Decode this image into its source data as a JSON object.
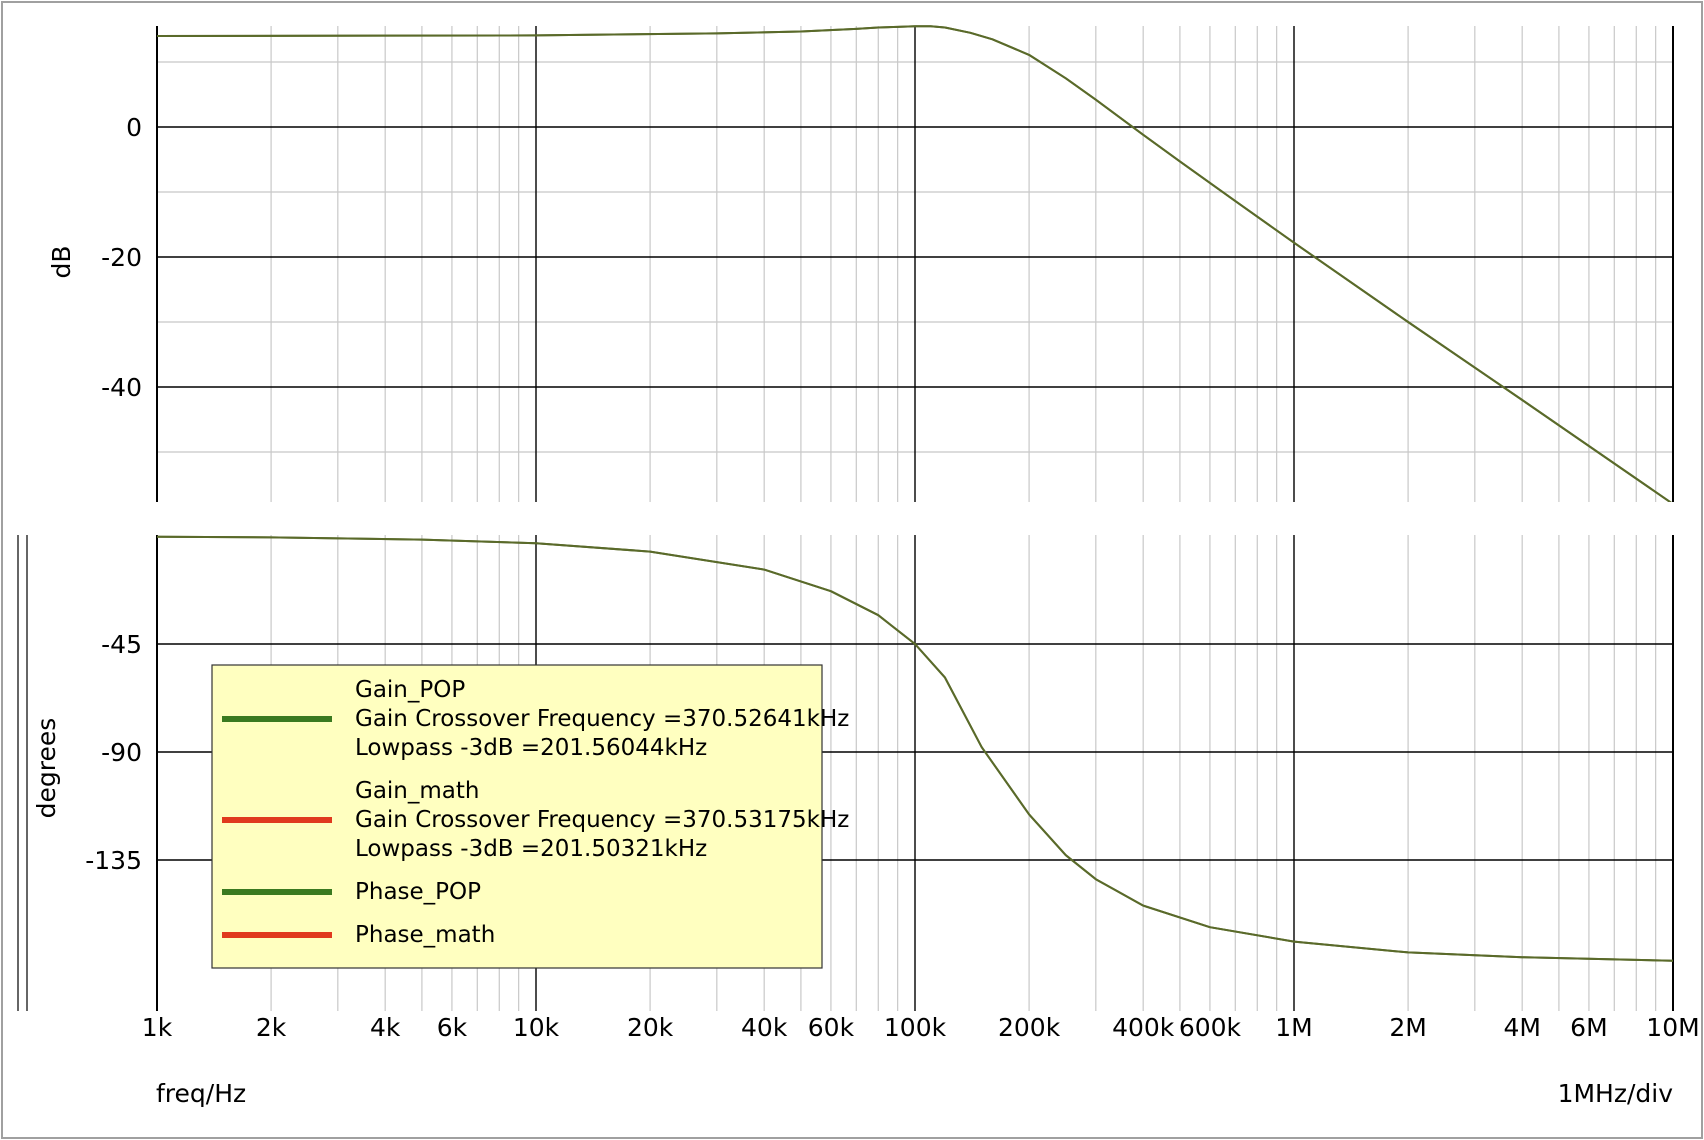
{
  "chart_data": [
    {
      "type": "line",
      "panel": "magnitude",
      "ylabel": "dB",
      "x_scale": "log",
      "xlim": [
        1000,
        10000000
      ],
      "ylim": [
        -58,
        18
      ],
      "yticks": [
        0,
        -20,
        -40
      ],
      "ytick_labels": [
        "0",
        "-20",
        "-40"
      ],
      "minor_y_step": 10,
      "grid": true,
      "series": [
        {
          "name": "Gain_POP",
          "x": [
            1000,
            10000,
            30000,
            50000,
            70000,
            80000,
            90000,
            100000,
            110000,
            120000,
            140000,
            160000,
            200000,
            250000,
            300000,
            400000,
            500000,
            700000,
            1000000,
            2000000,
            4000000,
            10000000
          ],
          "values": [
            14.0,
            14.1,
            14.4,
            14.7,
            15.1,
            15.3,
            15.4,
            15.5,
            15.5,
            15.3,
            14.5,
            13.5,
            11.1,
            7.5,
            4.2,
            -1.2,
            -5.3,
            -11.4,
            -17.8,
            -30.0,
            -42.0,
            -58.0
          ]
        },
        {
          "name": "Gain_math",
          "x": [
            1000,
            10000,
            30000,
            50000,
            70000,
            80000,
            90000,
            100000,
            110000,
            120000,
            140000,
            160000,
            200000,
            250000,
            300000,
            400000,
            500000,
            700000,
            1000000,
            2000000,
            4000000,
            10000000
          ],
          "values": [
            14.0,
            14.1,
            14.4,
            14.7,
            15.1,
            15.3,
            15.4,
            15.5,
            15.5,
            15.3,
            14.5,
            13.5,
            11.1,
            7.5,
            4.2,
            -1.2,
            -5.3,
            -11.4,
            -17.8,
            -30.0,
            -42.0,
            -58.0
          ]
        }
      ]
    },
    {
      "type": "line",
      "panel": "phase",
      "ylabel": "degrees",
      "x_scale": "log",
      "xlim": [
        1000,
        10000000
      ],
      "ylim": [
        -178,
        0
      ],
      "yticks": [
        -45,
        -90,
        -135
      ],
      "ytick_labels": [
        "-45",
        "-90",
        "-135"
      ],
      "grid": true,
      "series": [
        {
          "name": "Phase_POP",
          "x": [
            1000,
            2000,
            5000,
            10000,
            20000,
            40000,
            60000,
            80000,
            100000,
            120000,
            150000,
            200000,
            250000,
            300000,
            400000,
            600000,
            1000000,
            2000000,
            4000000,
            10000000
          ],
          "values": [
            -0.3,
            -0.6,
            -1.5,
            -3.0,
            -6.5,
            -14.0,
            -23.0,
            -33.0,
            -45.0,
            -59.0,
            -88.0,
            -116.0,
            -133.0,
            -143.0,
            -154.0,
            -163.0,
            -169.0,
            -173.5,
            -175.5,
            -177.0
          ]
        },
        {
          "name": "Phase_math",
          "x": [
            1000,
            2000,
            5000,
            10000,
            20000,
            40000,
            60000,
            80000,
            100000,
            120000,
            150000,
            200000,
            250000,
            300000,
            400000,
            600000,
            1000000,
            2000000,
            4000000,
            10000000
          ],
          "values": [
            -0.3,
            -0.6,
            -1.5,
            -3.0,
            -6.5,
            -14.0,
            -23.0,
            -33.0,
            -45.0,
            -59.0,
            -88.0,
            -116.0,
            -133.0,
            -143.0,
            -154.0,
            -163.0,
            -169.0,
            -173.5,
            -175.5,
            -177.0
          ]
        }
      ]
    }
  ],
  "x_axis": {
    "label": "freq/Hz",
    "scale_note": "1MHz/div",
    "ticks": [
      1000,
      2000,
      4000,
      6000,
      10000,
      20000,
      40000,
      60000,
      100000,
      200000,
      400000,
      600000,
      1000000,
      2000000,
      4000000,
      6000000,
      10000000
    ],
    "tick_labels": [
      "1k",
      "2k",
      "4k",
      "6k",
      "10k",
      "20k",
      "40k",
      "60k",
      "100k",
      "200k",
      "400k",
      "600k",
      "1M",
      "2M",
      "4M",
      "6M",
      "10M"
    ]
  },
  "legend": {
    "placement": "lower-left of phase panel",
    "entries": [
      {
        "name": "Gain_POP",
        "color": "#3a7a20",
        "lines": [
          "Gain Crossover Frequency =370.52641kHz",
          "Lowpass -3dB =201.56044kHz"
        ]
      },
      {
        "name": "Gain_math",
        "color": "#e03a1e",
        "lines": [
          "Gain Crossover Frequency =370.53175kHz",
          "Lowpass -3dB =201.50321kHz"
        ]
      },
      {
        "name": "Phase_POP",
        "color": "#3a7a20",
        "lines": []
      },
      {
        "name": "Phase_math",
        "color": "#e03a1e",
        "lines": []
      }
    ]
  },
  "colors": {
    "trace": "#5a6a2a",
    "major_grid": "#000000",
    "minor_grid": "#c8c8c8",
    "legend_bg": "#ffffc0",
    "frame": "#a0a0a0"
  }
}
